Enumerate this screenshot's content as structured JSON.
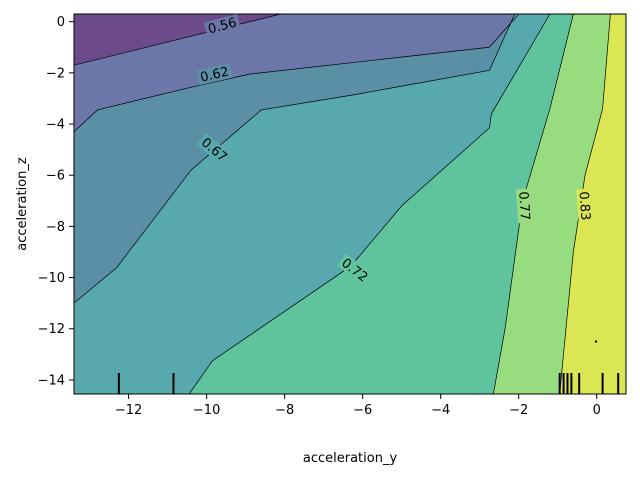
{
  "chart_data": {
    "type": "contour",
    "xlabel": "acceleration_y",
    "ylabel": "acceleration_z",
    "xlim": [
      -13.4,
      0.75
    ],
    "ylim": [
      -14.55,
      0.3
    ],
    "x_ticks": [
      {
        "value": -12,
        "label": "−12"
      },
      {
        "value": -10,
        "label": "−10"
      },
      {
        "value": -8,
        "label": "−8"
      },
      {
        "value": -6,
        "label": "−6"
      },
      {
        "value": -4,
        "label": "−4"
      },
      {
        "value": -2,
        "label": "−2"
      },
      {
        "value": 0,
        "label": "0"
      }
    ],
    "y_ticks": [
      {
        "value": 0,
        "label": "0"
      },
      {
        "value": -2,
        "label": "−2"
      },
      {
        "value": -4,
        "label": "−4"
      },
      {
        "value": -6,
        "label": "−6"
      },
      {
        "value": -8,
        "label": "−8"
      },
      {
        "value": -10,
        "label": "−10"
      },
      {
        "value": -12,
        "label": "−12"
      },
      {
        "value": -14,
        "label": "−14"
      }
    ],
    "colormap": [
      "#6d4a8c",
      "#6b77a9",
      "#5a8fa6",
      "#57a9ae",
      "#5fc49e",
      "#97dc7e",
      "#dbe655"
    ],
    "levels": [
      {
        "value": 0.56,
        "label": "0.56",
        "color": "#6b77a9",
        "line": [
          [
            -13.4,
            -1.7
          ],
          [
            -8.1,
            0.3
          ]
        ],
        "label_at": [
          -9.6,
          -0.15
        ],
        "label_angle": 15
      },
      {
        "value": 0.62,
        "label": "0.62",
        "color": "#5a8fa6",
        "line": [
          [
            -13.4,
            -4.3
          ],
          [
            -12.8,
            -3.45
          ],
          [
            -10.5,
            -2.6
          ],
          [
            -8.9,
            -2.05
          ],
          [
            -2.75,
            -1.0
          ],
          [
            -2.0,
            0.3
          ]
        ],
        "label_at": [
          -9.8,
          -2.05
        ],
        "label_angle": 13
      },
      {
        "value": 0.67,
        "label": "0.67",
        "color": "#57a9ae",
        "line": [
          [
            -13.4,
            -11.0
          ],
          [
            -12.3,
            -9.6
          ],
          [
            -11.1,
            -7.2
          ],
          [
            -10.4,
            -5.8
          ],
          [
            -8.6,
            -3.45
          ],
          [
            -6.2,
            -2.85
          ],
          [
            -2.75,
            -1.9
          ],
          [
            -2.1,
            0.3
          ]
        ],
        "label_at": [
          -9.8,
          -5.0
        ],
        "label_angle": -40
      },
      {
        "value": 0.72,
        "label": "0.72",
        "color": "#5fc49e",
        "line": [
          [
            -10.45,
            -14.55
          ],
          [
            -9.85,
            -13.25
          ],
          [
            -6.3,
            -9.55
          ],
          [
            -5.0,
            -7.2
          ],
          [
            -2.75,
            -4.15
          ],
          [
            -2.7,
            -3.6
          ],
          [
            -1.2,
            0.3
          ]
        ],
        "label_at": [
          -6.2,
          -9.7
        ],
        "label_angle": -38
      },
      {
        "value": 0.77,
        "label": "0.77",
        "color": "#97dc7e",
        "line": [
          [
            -2.65,
            -14.55
          ],
          [
            -2.35,
            -12.0
          ],
          [
            -1.9,
            -7.0
          ],
          [
            -1.2,
            -3.4
          ],
          [
            -0.6,
            0.3
          ]
        ],
        "label_at": [
          -1.85,
          -7.2
        ],
        "label_angle": -86
      },
      {
        "value": 0.83,
        "label": "0.83",
        "color": "#dbe655",
        "line": [
          [
            -0.95,
            -14.55
          ],
          [
            -0.6,
            -9.0
          ],
          [
            -0.3,
            -6.0
          ],
          [
            0.15,
            -3.4
          ],
          [
            0.35,
            0.3
          ]
        ],
        "label_at": [
          -0.3,
          -7.2
        ],
        "label_angle": -86
      }
    ],
    "rug_ticks_x": [
      -12.25,
      -10.85,
      -0.95,
      -0.85,
      -0.75,
      -0.65,
      -0.45,
      0.15,
      0.55
    ],
    "marker_point": [
      -0.02,
      -12.5
    ]
  }
}
